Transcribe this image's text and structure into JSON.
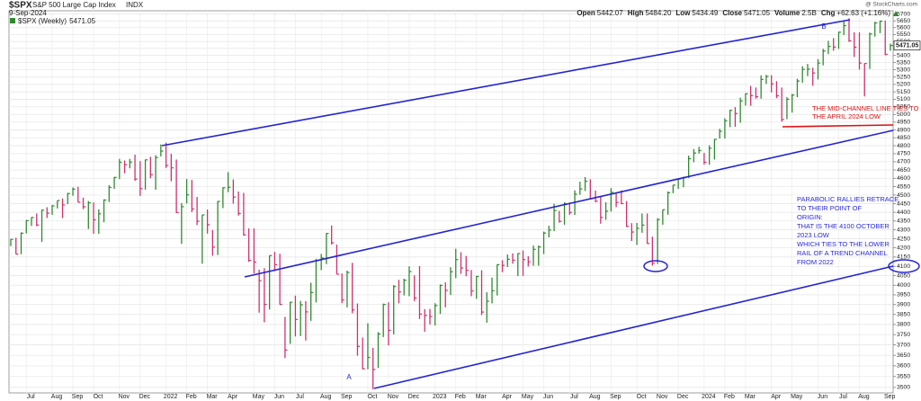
{
  "header": {
    "symbol": "$SPX",
    "name": "S&P 500 Large Cap Index",
    "exchange": "INDX",
    "date": "9-Sep-2024",
    "source": "@ StockCharts.com",
    "stats": [
      {
        "label": "Open",
        "value": "5442.07"
      },
      {
        "label": "High",
        "value": "5484.20"
      },
      {
        "label": "Low",
        "value": "5434.49"
      },
      {
        "label": "Close",
        "value": "5471.05"
      },
      {
        "label": "Volume",
        "value": "2.5B"
      },
      {
        "label": "Chg",
        "value": "+62.63 (+1.16%)"
      }
    ]
  },
  "chart_data": {
    "type": "ohlc",
    "log_scale": true,
    "grid": true,
    "ylim": [
      3475,
      5725
    ],
    "yticks": [
      3500,
      3550,
      3600,
      3650,
      3700,
      3750,
      3800,
      3850,
      3900,
      3950,
      4000,
      4050,
      4100,
      4150,
      4200,
      4250,
      4300,
      4350,
      4400,
      4450,
      4500,
      4550,
      4600,
      4650,
      4700,
      4750,
      4800,
      4850,
      4900,
      4950,
      5000,
      5050,
      5100,
      5150,
      5200,
      5250,
      5300,
      5350,
      5400,
      5450,
      5500,
      5550,
      5600,
      5650,
      5700
    ],
    "categories": [
      null,
      null,
      null,
      "Jul",
      null,
      null,
      null,
      null,
      "Aug",
      null,
      null,
      null,
      "Sep",
      null,
      null,
      null,
      "Oct",
      null,
      null,
      null,
      null,
      "Nov",
      null,
      null,
      null,
      "Dec",
      null,
      null,
      null,
      null,
      "2022",
      null,
      null,
      null,
      "Feb",
      null,
      null,
      null,
      "Mar",
      null,
      null,
      null,
      "Apr",
      null,
      null,
      null,
      null,
      "May",
      null,
      null,
      null,
      "Jun",
      null,
      null,
      null,
      "Jul",
      null,
      null,
      null,
      null,
      "Aug",
      null,
      null,
      null,
      "Sep",
      null,
      null,
      null,
      null,
      "Oct",
      null,
      null,
      null,
      "Nov",
      null,
      null,
      null,
      "Dec",
      null,
      null,
      null,
      null,
      "2023",
      null,
      null,
      null,
      "Feb",
      null,
      null,
      null,
      "Mar",
      null,
      null,
      null,
      null,
      "Apr",
      null,
      null,
      null,
      "May",
      null,
      null,
      null,
      "Jun",
      null,
      null,
      null,
      null,
      "Jul",
      null,
      null,
      null,
      "Aug",
      null,
      null,
      null,
      "Sep",
      null,
      null,
      null,
      null,
      "Oct",
      null,
      null,
      null,
      "Nov",
      null,
      null,
      null,
      "Dec",
      null,
      null,
      null,
      null,
      "2024",
      null,
      null,
      null,
      "Feb",
      null,
      null,
      null,
      "Mar",
      null,
      null,
      null,
      null,
      "Apr",
      null,
      null,
      null,
      "May",
      null,
      null,
      null,
      null,
      "Jun",
      null,
      null,
      null,
      "Jul",
      null,
      null,
      null,
      "Aug",
      null,
      null,
      null,
      null,
      "Sep",
      null
    ],
    "series": [
      {
        "name": "$SPX (Weekly)",
        "up_color": "#2f8a2f",
        "down_color": "#d2306e",
        "high": [
          4249,
          4256,
          4286,
          4356,
          4372,
          4393,
          4415,
          4429,
          4442,
          4468,
          4480,
          4513,
          4545,
          4549,
          4485,
          4465,
          4457,
          4417,
          4475,
          4559,
          4608,
          4718,
          4708,
          4718,
          4744,
          4704,
          4713,
          4731,
          4740,
          4808,
          4819,
          4749,
          4714,
          4453,
          4595,
          4590,
          4489,
          4385,
          4416,
          4299,
          4465,
          4546,
          4637,
          4593,
          4521,
          4513,
          4308,
          4308,
          4082,
          4090,
          4158,
          4178,
          4168,
          3838,
          3914,
          3946,
          3919,
          3918,
          4013,
          4140,
          4167,
          4281,
          4325,
          4218,
          4062,
          4077,
          4119,
          3906,
          3736,
          3806,
          3686,
          3762,
          3905,
          3912,
          4001,
          4028,
          4034,
          4100,
          4052,
          4101,
          3877,
          3878,
          3907,
          4004,
          4015,
          4095,
          4195,
          4176,
          4156,
          4080,
          4049,
          4079,
          3964,
          4040,
          4110,
          4133,
          4164,
          4170,
          4170,
          4186,
          4155,
          4213,
          4213,
          4290,
          4323,
          4449,
          4408,
          4458,
          4456,
          4528,
          4579,
          4607,
          4594,
          4527,
          4490,
          4458,
          4541,
          4515,
          4527,
          4465,
          4338,
          4339,
          4393,
          4393,
          4262,
          4366,
          4415,
          4521,
          4560,
          4596,
          4609,
          4738,
          4779,
          4793,
          4755,
          4802,
          4842,
          4907,
          4975,
          5030,
          5048,
          5111,
          5140,
          5190,
          5179,
          5262,
          5265,
          5263,
          5222,
          5179,
          5114,
          5136,
          5239,
          5325,
          5341,
          5315,
          5375,
          5447,
          5505,
          5524,
          5570,
          5655,
          5669,
          5566,
          5566,
          5345,
          5564,
          5643,
          5651,
          5652,
          5484.2
        ],
        "low": [
          4210,
          4165,
          4165,
          4280,
          4322,
          4321,
          4233,
          4367,
          4385,
          4422,
          4367,
          4447,
          4496,
          4457,
          4418,
          4305,
          4278,
          4278,
          4343,
          4460,
          4537,
          4595,
          4630,
          4660,
          4585,
          4495,
          4532,
          4600,
          4531,
          4733,
          4662,
          4582,
          4396,
          4222,
          4451,
          4401,
          4327,
          4114,
          4279,
          4157,
          4161,
          4424,
          4517,
          4450,
          4381,
          4267,
          4124,
          4062,
          3859,
          3811,
          3875,
          4074,
          3900,
          3637,
          3705,
          3741,
          3743,
          3721,
          3818,
          3911,
          4080,
          4112,
          4218,
          4057,
          3907,
          3886,
          3856,
          3648,
          3584,
          3584,
          3491,
          3590,
          3738,
          3698,
          3751,
          3907,
          3947,
          3943,
          3918,
          3827,
          3764,
          3800,
          3795,
          3853,
          3886,
          3949,
          4037,
          4060,
          4047,
          3943,
          3929,
          3847,
          3809,
          3906,
          3947,
          4069,
          4096,
          4114,
          4048,
          4049,
          4099,
          4103,
          4103,
          4166,
          4258,
          4293,
          4341,
          4329,
          4385,
          4385,
          4502,
          4524,
          4475,
          4458,
          4335,
          4357,
          4404,
          4430,
          4447,
          4317,
          4238,
          4216,
          4284,
          4223,
          4104,
          4113,
          4329,
          4386,
          4511,
          4537,
          4546,
          4601,
          4697,
          4751,
          4683,
          4682,
          4714,
          4845,
          4845,
          4918,
          4920,
          4946,
          5058,
          5057,
          5104,
          5104,
          5203,
          5146,
          5107,
          4953,
          4969,
          5012,
          5114,
          5211,
          5257,
          5191,
          5234,
          5331,
          5410,
          5434,
          5447,
          5546,
          5497,
          5390,
          5302,
          5119,
          5306,
          5535,
          5560,
          5402,
          5434.49
        ],
        "close": [
          4247,
          4166,
          4281,
          4352,
          4370,
          4327,
          4412,
          4395,
          4437,
          4468,
          4442,
          4509,
          4535,
          4458,
          4432,
          4455,
          4357,
          4391,
          4471,
          4545,
          4605,
          4697,
          4682,
          4698,
          4595,
          4538,
          4712,
          4621,
          4726,
          4766,
          4677,
          4663,
          4398,
          4432,
          4501,
          4419,
          4349,
          4385,
          4329,
          4204,
          4463,
          4543,
          4546,
          4488,
          4393,
          4272,
          4132,
          4123,
          4024,
          3901,
          4158,
          4109,
          3901,
          3675,
          3912,
          3825,
          3899,
          3863,
          3962,
          4130,
          4145,
          4280,
          4228,
          4058,
          3924,
          4067,
          3873,
          3693,
          3586,
          3640,
          3583,
          3753,
          3901,
          3771,
          3993,
          3965,
          4026,
          4072,
          3934,
          3852,
          3845,
          3840,
          3895,
          3999,
          3973,
          4071,
          4136,
          4091,
          4079,
          3970,
          4046,
          3862,
          3917,
          3971,
          4109,
          4105,
          4138,
          4133,
          4169,
          4136,
          4124,
          4192,
          4205,
          4282,
          4299,
          4410,
          4348,
          4450,
          4399,
          4505,
          4536,
          4582,
          4478,
          4464,
          4370,
          4406,
          4516,
          4457,
          4450,
          4320,
          4288,
          4309,
          4327,
          4224,
          4117,
          4358,
          4415,
          4514,
          4559,
          4595,
          4604,
          4719,
          4754,
          4770,
          4697,
          4784,
          4840,
          4891,
          4959,
          5027,
          5006,
          5089,
          5137,
          5124,
          5117,
          5234,
          5254,
          5204,
          5123,
          4967,
          5100,
          5128,
          5223,
          5303,
          5305,
          5278,
          5347,
          5432,
          5465,
          5460,
          5567,
          5615,
          5505,
          5459,
          5347,
          5344,
          5554,
          5635,
          5648,
          5408,
          5471.05
        ]
      }
    ],
    "annotations": {
      "point_a": "A",
      "point_b": "B",
      "mid_channel_note": [
        "THE MID-CHANNEL LINE TIES TO",
        "THE APRIL 2024 LOW"
      ],
      "retrace_note": [
        "PARABOLIC RALLIES RETRACE",
        "TO THEIR POINT OF",
        "ORIGIN:",
        "THAT IS THE 4100 OCTOBER",
        "2023 LOW",
        "WHICH TIES TO THE LOWER",
        "RAIL OF A TREND CHANNEL",
        "FROM 2022"
      ]
    }
  }
}
